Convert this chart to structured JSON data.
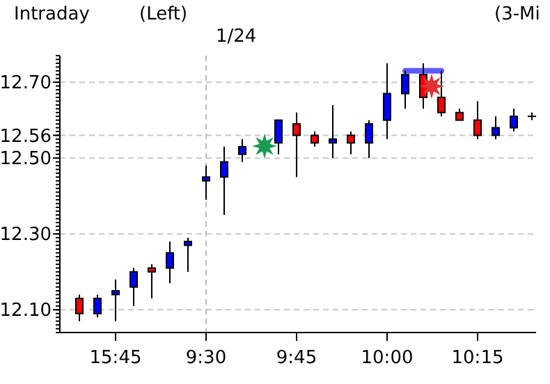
{
  "chart_data": {
    "type": "candlestick",
    "title": "Intraday",
    "annotations": [
      "(Left)",
      "(3-Mi",
      "1/24"
    ],
    "categories": [
      null,
      null,
      "15:45",
      null,
      null,
      null,
      null,
      "9:30",
      null,
      null,
      null,
      null,
      "9:45",
      null,
      null,
      null,
      null,
      "10:00",
      null,
      null,
      null,
      null,
      "10:15",
      null,
      null,
      null
    ],
    "ohlc": [
      [
        12.13,
        12.14,
        12.07,
        12.09
      ],
      [
        12.09,
        12.14,
        12.08,
        12.13
      ],
      [
        12.14,
        12.18,
        12.07,
        12.15
      ],
      [
        12.16,
        12.21,
        12.11,
        12.2
      ],
      [
        12.21,
        12.22,
        12.13,
        12.2
      ],
      [
        12.21,
        12.28,
        12.17,
        12.25
      ],
      [
        12.27,
        12.29,
        12.2,
        12.28
      ],
      [
        12.44,
        12.48,
        12.39,
        12.45
      ],
      [
        12.45,
        12.53,
        12.35,
        12.49
      ],
      [
        12.51,
        12.55,
        12.49,
        12.53
      ],
      null,
      [
        12.54,
        12.6,
        12.51,
        12.6
      ],
      [
        12.59,
        12.62,
        12.45,
        12.56
      ],
      [
        12.56,
        12.57,
        12.53,
        12.54
      ],
      [
        12.54,
        12.64,
        12.5,
        12.55
      ],
      [
        12.56,
        12.57,
        12.51,
        12.54
      ],
      [
        12.54,
        12.6,
        12.5,
        12.59
      ],
      [
        12.6,
        12.75,
        12.55,
        12.67
      ],
      [
        12.67,
        12.73,
        12.63,
        12.72
      ],
      [
        12.72,
        12.75,
        12.63,
        12.66
      ],
      [
        12.66,
        12.73,
        12.61,
        12.62
      ],
      [
        12.62,
        12.63,
        12.6,
        12.6
      ],
      [
        12.6,
        12.65,
        12.55,
        12.56
      ],
      [
        12.56,
        12.61,
        12.55,
        12.58
      ],
      [
        12.58,
        12.63,
        12.57,
        12.61
      ],
      [
        12.61,
        12.62,
        12.6,
        12.61
      ]
    ],
    "colors": [
      "#ff0000",
      "#0000ff",
      "#0000ff",
      "#0000ff",
      "#ff0000",
      "#0000ff",
      "#0000ff",
      "#0000ff",
      "#0000ff",
      "#0000ff",
      null,
      "#0000ff",
      "#ff0000",
      "#ff0000",
      "#0000ff",
      "#ff0000",
      "#0000ff",
      "#0000ff",
      "#0000ff",
      "#ff0000",
      "#ff0000",
      "#ff0000",
      "#ff0000",
      "#0000ff",
      "#0000ff",
      "#000000"
    ],
    "series": [
      {
        "type": "line",
        "color": "#5a5aff",
        "values": [
          null,
          null,
          null,
          null,
          null,
          null,
          null,
          null,
          null,
          null,
          null,
          null,
          null,
          null,
          null,
          null,
          null,
          null,
          12.73,
          12.73,
          12.73,
          null,
          null,
          null,
          null,
          null
        ]
      }
    ],
    "ylim": [
      12.04,
      12.77
    ],
    "yticks": [
      {
        "value": 12.1,
        "label": "12.10"
      },
      {
        "value": 12.3,
        "label": "12.30"
      },
      {
        "value": 12.5,
        "label": "12.50"
      },
      {
        "value": 12.56,
        "label": "12.56"
      },
      {
        "value": 12.7,
        "label": "12.70"
      }
    ],
    "grid": "y",
    "ref_lines": [
      {
        "axis": "x",
        "value": "9:30",
        "line_style": "dashed",
        "color": "#bbbbbb"
      }
    ]
  }
}
